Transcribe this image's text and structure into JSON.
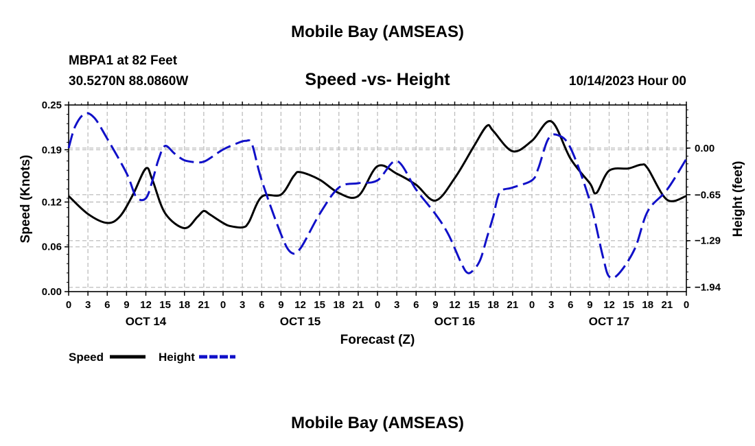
{
  "page": {
    "title": "Mobile Bay (AMSEAS)",
    "station": "MBPA1 at 82 Feet",
    "coords": "30.5270N  88.0860W",
    "datetime": "10/14/2023 Hour 00",
    "footer_title": "Mobile Bay (AMSEAS)"
  },
  "chart_data": {
    "type": "line",
    "title": "Speed -vs- Height",
    "xlabel": "Forecast (Z)",
    "ylabel_left": "Speed (Knots)",
    "ylabel_right": "Height (feet)",
    "x_range_hours": [
      0,
      96
    ],
    "x_tick_step_hours": 3,
    "x_tick_labels": [
      "0",
      "3",
      "6",
      "9",
      "12",
      "15",
      "18",
      "21",
      "0",
      "3",
      "6",
      "9",
      "12",
      "15",
      "18",
      "21",
      "0",
      "3",
      "6",
      "9",
      "12",
      "15",
      "18",
      "21",
      "0",
      "3",
      "6",
      "9",
      "12",
      "15",
      "18",
      "21",
      "0"
    ],
    "date_labels": [
      {
        "label": "OCT 14",
        "hour": 12
      },
      {
        "label": "OCT 15",
        "hour": 36
      },
      {
        "label": "OCT 16",
        "hour": 60
      },
      {
        "label": "OCT 17",
        "hour": 84
      }
    ],
    "y_left": {
      "range": [
        0,
        0.25
      ],
      "ticks": [
        0.0,
        0.06,
        0.12,
        0.19,
        0.25
      ],
      "tick_labels": [
        "0.00",
        "0.06",
        "0.12",
        "0.19",
        "0.25"
      ]
    },
    "y_right": {
      "range": [
        -2.0,
        0.6
      ],
      "ticks": [
        0.0,
        -0.65,
        -1.29,
        -1.94
      ],
      "tick_labels": [
        "0.00",
        "−0.65",
        "−1.29",
        "−1.94"
      ]
    },
    "grid": true,
    "legend": [
      {
        "label": "Speed",
        "color": "#000000",
        "style": "solid"
      },
      {
        "label": "Height",
        "color": "#1010c8",
        "style": "dashed"
      }
    ],
    "series": [
      {
        "name": "Speed",
        "axis": "left",
        "color": "#000000",
        "style": "solid",
        "x": [
          0,
          3,
          6,
          8,
          10,
          12,
          13,
          15,
          18,
          20,
          21,
          22,
          24,
          25,
          27,
          28,
          30,
          33,
          35,
          36,
          39,
          42,
          45,
          48,
          51,
          54,
          57,
          60,
          63,
          65,
          66,
          69,
          72,
          75,
          78,
          81,
          82,
          84,
          87,
          89,
          90,
          93,
          96
        ],
        "y": [
          0.128,
          0.104,
          0.092,
          0.101,
          0.13,
          0.165,
          0.15,
          0.105,
          0.085,
          0.1,
          0.108,
          0.103,
          0.092,
          0.088,
          0.086,
          0.093,
          0.127,
          0.13,
          0.155,
          0.16,
          0.15,
          0.132,
          0.128,
          0.168,
          0.158,
          0.143,
          0.122,
          0.152,
          0.195,
          0.222,
          0.215,
          0.188,
          0.202,
          0.228,
          0.178,
          0.145,
          0.132,
          0.162,
          0.165,
          0.17,
          0.165,
          0.123,
          0.128
        ]
      },
      {
        "name": "Height",
        "axis": "right",
        "color": "#1010c8",
        "style": "dashed",
        "x": [
          0,
          1,
          2.5,
          4,
          6,
          9,
          10.5,
          12,
          13,
          14,
          15,
          16.5,
          18,
          20,
          21,
          22,
          24,
          26,
          27.5,
          28.5,
          30,
          33,
          34.5,
          36,
          39,
          42,
          45,
          48,
          51,
          54,
          57,
          59,
          61,
          62,
          63,
          64,
          65,
          66,
          67,
          69,
          72,
          73,
          74.5,
          76,
          78,
          81,
          83,
          84,
          85.5,
          88,
          90,
          93,
          96
        ],
        "y": [
          0.0,
          0.3,
          0.48,
          0.42,
          0.13,
          -0.35,
          -0.68,
          -0.7,
          -0.46,
          -0.15,
          0.03,
          -0.08,
          -0.17,
          -0.2,
          -0.19,
          -0.14,
          -0.02,
          0.06,
          0.1,
          0.05,
          -0.45,
          -1.2,
          -1.45,
          -1.4,
          -0.92,
          -0.55,
          -0.49,
          -0.45,
          -0.18,
          -0.58,
          -0.92,
          -1.2,
          -1.6,
          -1.74,
          -1.69,
          -1.55,
          -1.25,
          -0.95,
          -0.62,
          -0.55,
          -0.45,
          -0.28,
          0.12,
          0.18,
          0.0,
          -0.74,
          -1.5,
          -1.79,
          -1.75,
          -1.4,
          -0.88,
          -0.58,
          -0.15
        ]
      }
    ]
  }
}
